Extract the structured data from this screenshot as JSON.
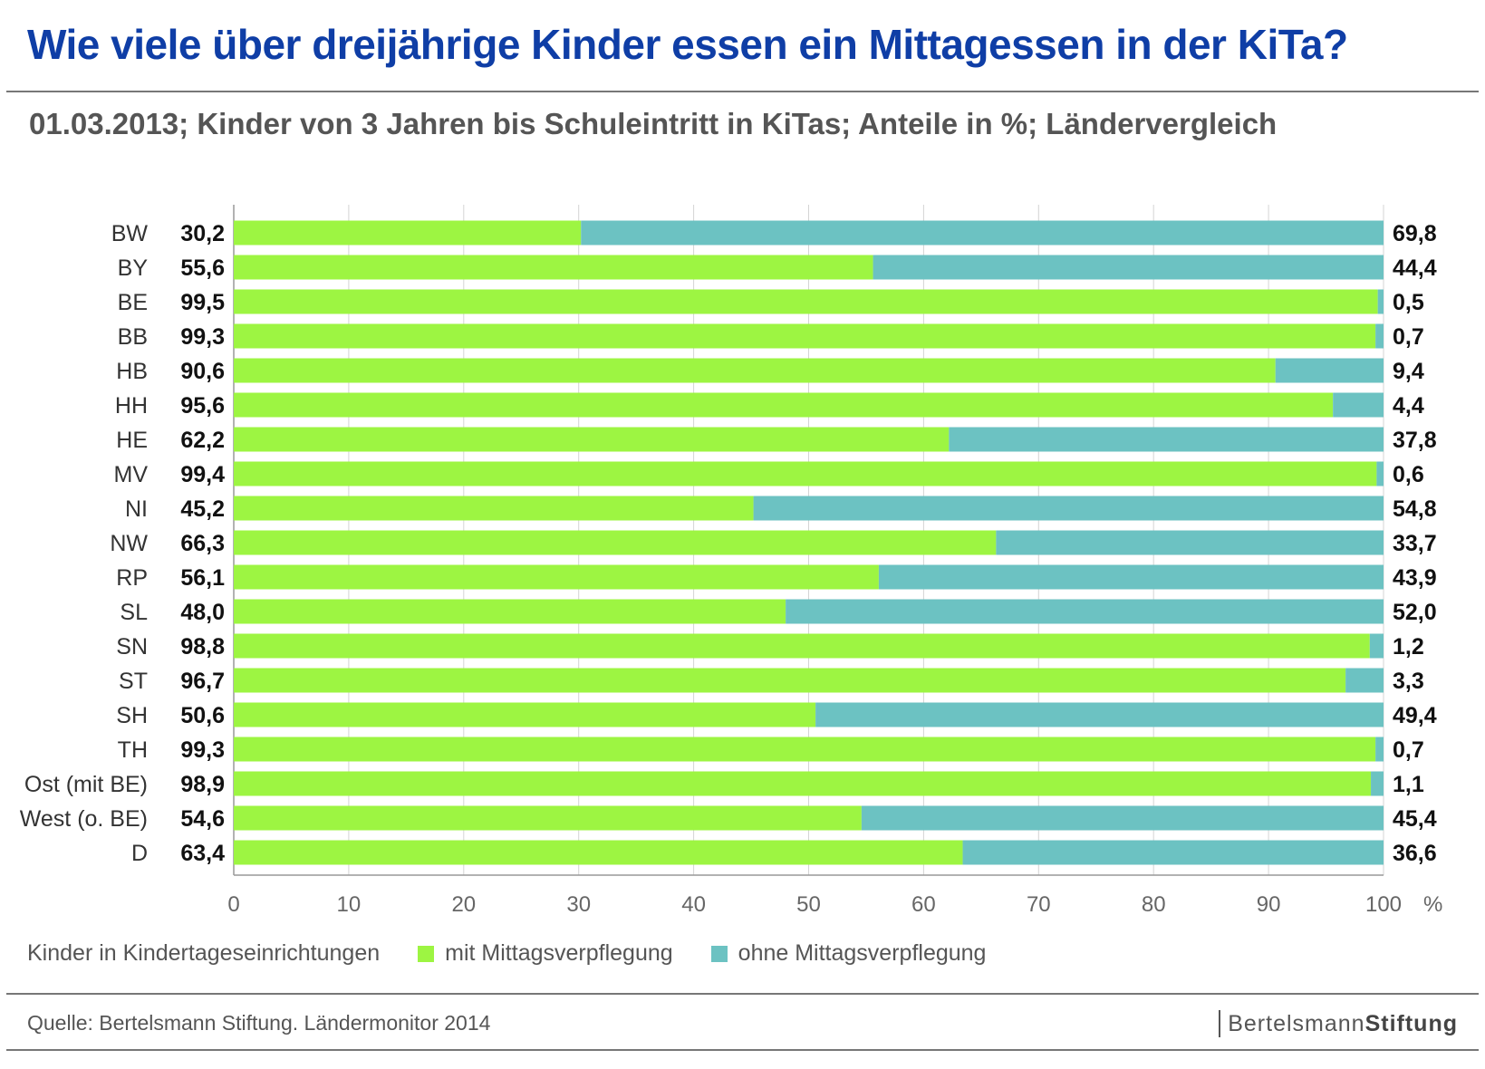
{
  "header": {
    "title": "Wie viele über dreijährige Kinder essen ein Mittagessen in der KiTa?",
    "subtitle": "01.03.2013; Kinder von 3 Jahren bis Schuleintritt in KiTas; Anteile in %; Ländervergleich"
  },
  "legend": {
    "label": "Kinder in Kindertageseinrichtungen",
    "with": "mit Mittagsverpflegung",
    "without": "ohne Mittagsverpflegung"
  },
  "footer": {
    "source": "Quelle: Bertelsmann Stiftung. Ländermonitor 2014",
    "brand_regular": "Bertelsmann",
    "brand_bold": "Stiftung"
  },
  "chart_data": {
    "type": "bar",
    "orientation": "horizontal",
    "stacked": true,
    "categories": [
      "BW",
      "BY",
      "BE",
      "BB",
      "HB",
      "HH",
      "HE",
      "MV",
      "NI",
      "NW",
      "RP",
      "SL",
      "SN",
      "ST",
      "SH",
      "TH",
      "Ost (mit BE)",
      "West (o. BE)",
      "D"
    ],
    "series": [
      {
        "name": "mit Mittagsverpflegung",
        "color": "#9df542",
        "values": [
          30.2,
          55.6,
          99.5,
          99.3,
          90.6,
          95.6,
          62.2,
          99.4,
          45.2,
          66.3,
          56.1,
          48.0,
          98.8,
          96.7,
          50.6,
          99.3,
          98.9,
          54.6,
          63.4
        ],
        "labels": [
          "30,2",
          "55,6",
          "99,5",
          "99,3",
          "90,6",
          "95,6",
          "62,2",
          "99,4",
          "45,2",
          "66,3",
          "56,1",
          "48,0",
          "98,8",
          "96,7",
          "50,6",
          "99,3",
          "98,9",
          "54,6",
          "63,4"
        ]
      },
      {
        "name": "ohne Mittagsverpflegung",
        "color": "#6cc2c2",
        "values": [
          69.8,
          44.4,
          0.5,
          0.7,
          9.4,
          4.4,
          37.8,
          0.6,
          54.8,
          33.7,
          43.9,
          52.0,
          1.2,
          3.3,
          49.4,
          0.7,
          1.1,
          45.4,
          36.6
        ],
        "labels": [
          "69,8",
          "44,4",
          "0,5",
          "0,7",
          "9,4",
          "4,4",
          "37,8",
          "0,6",
          "54,8",
          "33,7",
          "43,9",
          "52,0",
          "1,2",
          "3,3",
          "49,4",
          "0,7",
          "1,1",
          "45,4",
          "36,6"
        ]
      }
    ],
    "xlim": [
      0,
      100
    ],
    "xticks": [
      "0",
      "10",
      "20",
      "30",
      "40",
      "50",
      "60",
      "70",
      "80",
      "90",
      "100"
    ],
    "xunit": "%",
    "grid": true
  }
}
